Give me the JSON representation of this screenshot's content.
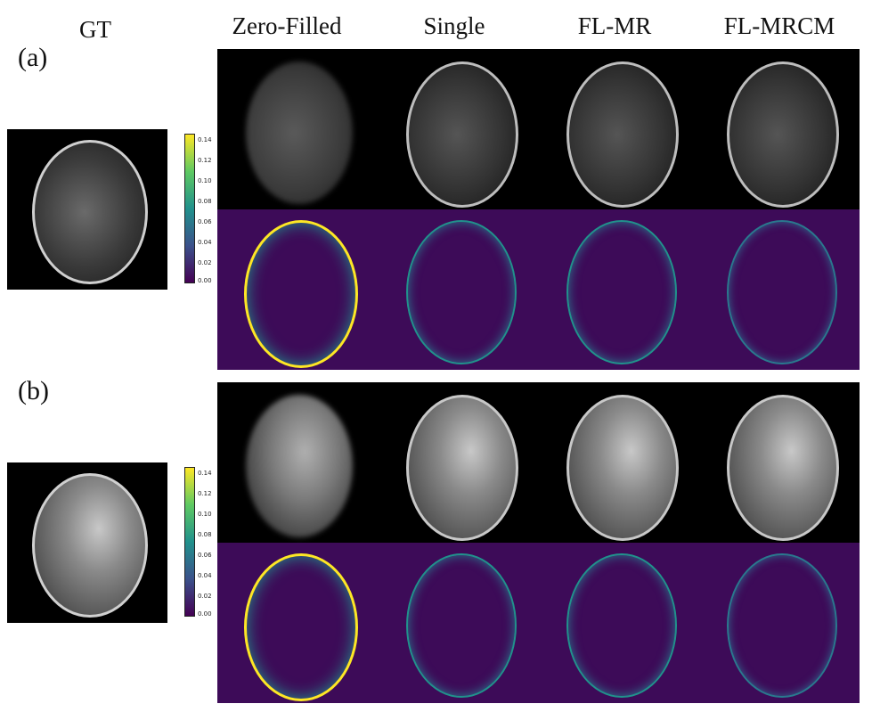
{
  "column_titles": [
    "GT",
    "Zero-Filled",
    "Single",
    "FL-MR",
    "FL-MRCM"
  ],
  "panels": [
    {
      "label": "(a)",
      "colorbar_ticks": [
        "0.14",
        "0.12",
        "0.10",
        "0.08",
        "0.06",
        "0.04",
        "0.02",
        "0.00"
      ]
    },
    {
      "label": "(b)",
      "colorbar_ticks": [
        "0.14",
        "0.12",
        "0.10",
        "0.08",
        "0.06",
        "0.04",
        "0.02",
        "0.00"
      ]
    }
  ],
  "colors": {
    "viridis_low": "#440154",
    "viridis_mid": "#21918c",
    "viridis_high": "#fde725",
    "error_background": "#3d0b58"
  }
}
